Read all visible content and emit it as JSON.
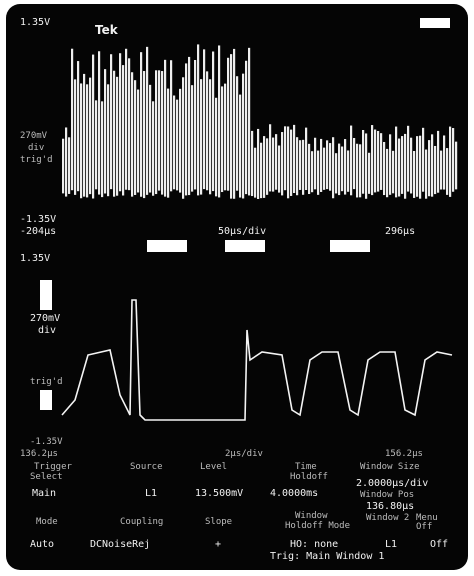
{
  "upper": {
    "brand": "Tek",
    "top_level": "1.35V",
    "scale": "270mV",
    "scale_unit": "div",
    "status": "trig'd",
    "bottom_level": "-1.35V",
    "start_time": "-204µs",
    "time_scale": "50µs/div",
    "end_time": "296µs"
  },
  "lower": {
    "top_level": "1.35V",
    "scale": "270mV",
    "scale_unit": "div",
    "status": "trig'd",
    "bottom_level": "-1.35V",
    "start_time": "136.2µs",
    "time_scale": "2µs/div",
    "end_time": "156.2µs"
  },
  "menu": {
    "headers": [
      "Trigger",
      "Select",
      "Source",
      "Level",
      "Time",
      "Window Size"
    ],
    "holdoff": "Holdoff",
    "values": [
      "Main",
      "L1",
      "13.500mV",
      "4.0000ms",
      "2.0000µs/div"
    ],
    "window_pos_label": "Window Pos",
    "window_pos": "136.80µs",
    "headers2": [
      "Mode",
      "Coupling",
      "Slope",
      "Window",
      "Holdoff Mode",
      "Window 2",
      "Menu Off"
    ],
    "values2": [
      "Auto",
      "DCNoiseRej",
      "+",
      "HO: none",
      "L1",
      "Off"
    ],
    "status": "Trig: Main Window 1"
  }
}
